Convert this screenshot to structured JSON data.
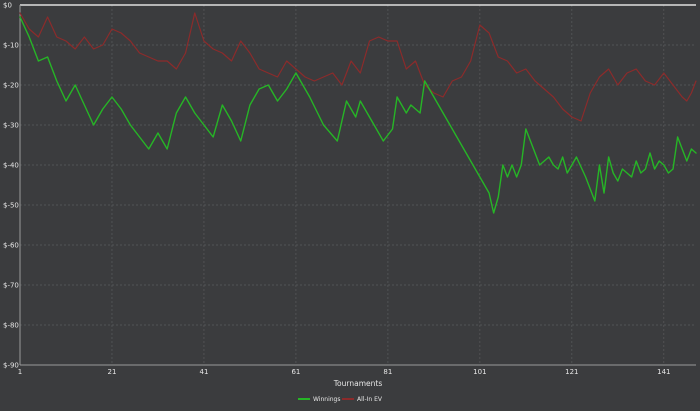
{
  "chart_data": {
    "type": "line",
    "title": "",
    "xlabel": "Tournaments",
    "ylabel": "",
    "xlim": [
      1,
      148
    ],
    "ylim": [
      -90,
      0
    ],
    "x_ticks": [
      1,
      21,
      41,
      61,
      81,
      101,
      121,
      141
    ],
    "x_tick_labels": [
      "1",
      "21",
      "41",
      "61",
      "81",
      "101",
      "121",
      "141"
    ],
    "y_ticks": [
      0,
      -10,
      -20,
      -30,
      -40,
      -50,
      -60,
      -70,
      -80,
      -90
    ],
    "y_tick_labels": [
      "$0",
      "$-10",
      "$-20",
      "$-30",
      "$-40",
      "$-50",
      "$-60",
      "$-70",
      "$-80",
      "$-90"
    ],
    "grid": true,
    "legend_position": "bottom",
    "colors": {
      "background": "#3b3c3e",
      "grid": "#5a5b5d",
      "axis": "#9a9a9a",
      "winnings": "#26b526",
      "allin_ev": "#8c2b2b"
    },
    "series": [
      {
        "name": "Winnings",
        "color": "#26b526",
        "points": [
          [
            1,
            -3
          ],
          [
            3,
            -8
          ],
          [
            5,
            -14
          ],
          [
            7,
            -13
          ],
          [
            9,
            -19
          ],
          [
            11,
            -24
          ],
          [
            13,
            -20
          ],
          [
            15,
            -25
          ],
          [
            17,
            -30
          ],
          [
            19,
            -26
          ],
          [
            21,
            -23
          ],
          [
            23,
            -26
          ],
          [
            25,
            -30
          ],
          [
            27,
            -33
          ],
          [
            29,
            -36
          ],
          [
            31,
            -32
          ],
          [
            33,
            -36
          ],
          [
            35,
            -27
          ],
          [
            37,
            -23
          ],
          [
            39,
            -27
          ],
          [
            41,
            -30
          ],
          [
            43,
            -33
          ],
          [
            45,
            -25
          ],
          [
            47,
            -29
          ],
          [
            49,
            -34
          ],
          [
            51,
            -25
          ],
          [
            53,
            -21
          ],
          [
            55,
            -20
          ],
          [
            57,
            -24
          ],
          [
            59,
            -21
          ],
          [
            61,
            -17
          ],
          [
            64,
            -23
          ],
          [
            67,
            -30
          ],
          [
            70,
            -34
          ],
          [
            72,
            -24
          ],
          [
            74,
            -28
          ],
          [
            75,
            -24
          ],
          [
            78,
            -30
          ],
          [
            80,
            -34
          ],
          [
            82,
            -31
          ],
          [
            83,
            -23
          ],
          [
            85,
            -27
          ],
          [
            86,
            -25
          ],
          [
            88,
            -27
          ],
          [
            89,
            -19
          ],
          [
            92,
            -25
          ],
          [
            95,
            -31
          ],
          [
            98,
            -37
          ],
          [
            101,
            -43
          ],
          [
            103,
            -47
          ],
          [
            104,
            -52
          ],
          [
            105,
            -48
          ],
          [
            106,
            -40
          ],
          [
            107,
            -43
          ],
          [
            108,
            -40
          ],
          [
            109,
            -43
          ],
          [
            110,
            -40
          ],
          [
            111,
            -31
          ],
          [
            113,
            -37
          ],
          [
            114,
            -40
          ],
          [
            115,
            -39
          ],
          [
            116,
            -38
          ],
          [
            117,
            -40
          ],
          [
            118,
            -41
          ],
          [
            119,
            -38
          ],
          [
            120,
            -42
          ],
          [
            122,
            -38
          ],
          [
            124,
            -43
          ],
          [
            126,
            -49
          ],
          [
            127,
            -40
          ],
          [
            128,
            -47
          ],
          [
            129,
            -38
          ],
          [
            130,
            -42
          ],
          [
            131,
            -44
          ],
          [
            132,
            -41
          ],
          [
            134,
            -43
          ],
          [
            135,
            -39
          ],
          [
            136,
            -42
          ],
          [
            137,
            -41
          ],
          [
            138,
            -37
          ],
          [
            139,
            -41
          ],
          [
            140,
            -39
          ],
          [
            141,
            -40
          ],
          [
            142,
            -42
          ],
          [
            143,
            -41
          ],
          [
            144,
            -33
          ],
          [
            145,
            -36
          ],
          [
            146,
            -39
          ],
          [
            147,
            -36
          ],
          [
            148,
            -37
          ]
        ]
      },
      {
        "name": "All-In EV",
        "color": "#8c2b2b",
        "points": [
          [
            1,
            -2
          ],
          [
            3,
            -6
          ],
          [
            5,
            -8
          ],
          [
            7,
            -3
          ],
          [
            9,
            -8
          ],
          [
            11,
            -9
          ],
          [
            13,
            -11
          ],
          [
            15,
            -8
          ],
          [
            17,
            -11
          ],
          [
            19,
            -10
          ],
          [
            21,
            -6
          ],
          [
            23,
            -7
          ],
          [
            25,
            -9
          ],
          [
            27,
            -12
          ],
          [
            29,
            -13
          ],
          [
            31,
            -14
          ],
          [
            33,
            -14
          ],
          [
            35,
            -16
          ],
          [
            37,
            -12
          ],
          [
            39,
            -2
          ],
          [
            41,
            -9
          ],
          [
            43,
            -11
          ],
          [
            45,
            -12
          ],
          [
            47,
            -14
          ],
          [
            49,
            -9
          ],
          [
            51,
            -12
          ],
          [
            53,
            -16
          ],
          [
            55,
            -17
          ],
          [
            57,
            -18
          ],
          [
            59,
            -14
          ],
          [
            61,
            -16
          ],
          [
            63,
            -18
          ],
          [
            65,
            -19
          ],
          [
            67,
            -18
          ],
          [
            69,
            -17
          ],
          [
            71,
            -20
          ],
          [
            73,
            -14
          ],
          [
            75,
            -17
          ],
          [
            77,
            -9
          ],
          [
            79,
            -8
          ],
          [
            81,
            -9
          ],
          [
            83,
            -9
          ],
          [
            85,
            -16
          ],
          [
            87,
            -14
          ],
          [
            89,
            -20
          ],
          [
            91,
            -22
          ],
          [
            93,
            -23
          ],
          [
            95,
            -19
          ],
          [
            97,
            -18
          ],
          [
            99,
            -14
          ],
          [
            101,
            -5
          ],
          [
            103,
            -7
          ],
          [
            105,
            -13
          ],
          [
            107,
            -14
          ],
          [
            109,
            -17
          ],
          [
            111,
            -16
          ],
          [
            113,
            -19
          ],
          [
            115,
            -21
          ],
          [
            117,
            -23
          ],
          [
            119,
            -26
          ],
          [
            121,
            -28
          ],
          [
            123,
            -29
          ],
          [
            125,
            -22
          ],
          [
            127,
            -18
          ],
          [
            129,
            -16
          ],
          [
            131,
            -20
          ],
          [
            133,
            -17
          ],
          [
            135,
            -16
          ],
          [
            137,
            -19
          ],
          [
            139,
            -20
          ],
          [
            141,
            -17
          ],
          [
            143,
            -20
          ],
          [
            145,
            -23
          ],
          [
            146,
            -24
          ],
          [
            147,
            -22
          ],
          [
            148,
            -19
          ]
        ]
      }
    ]
  }
}
